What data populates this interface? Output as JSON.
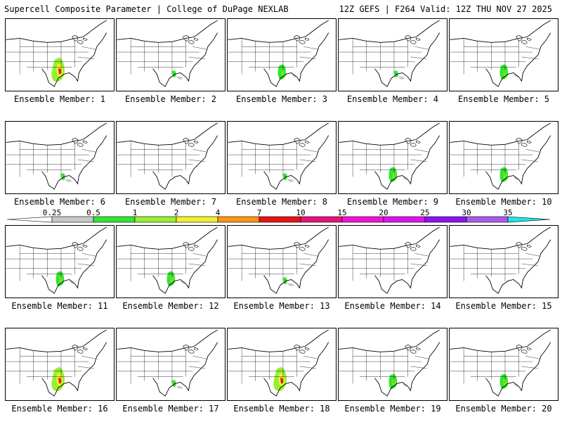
{
  "header": {
    "left": "Supercell Composite Parameter | College of DuPage NEXLAB",
    "right": "12Z GEFS | F264 Valid: 12Z THU NOV 27 2025"
  },
  "colorbar": {
    "labels": [
      "0.25",
      "0.5",
      "1",
      "2",
      "4",
      "7",
      "10",
      "15",
      "20",
      "25",
      "30",
      "35"
    ],
    "colors": [
      "#c8c8c8",
      "#32e632",
      "#96f032",
      "#f0f032",
      "#fa9614",
      "#e61414",
      "#e61478",
      "#f014d2",
      "#dc14f0",
      "#8c14f0",
      "#aa5ae6",
      "#1ee6e6"
    ]
  },
  "members": [
    {
      "label": "Ensemble Member: 1",
      "severity": "high"
    },
    {
      "label": "Ensemble Member: 2",
      "severity": "low"
    },
    {
      "label": "Ensemble Member: 3",
      "severity": "mid"
    },
    {
      "label": "Ensemble Member: 4",
      "severity": "low"
    },
    {
      "label": "Ensemble Member: 5",
      "severity": "mid"
    },
    {
      "label": "Ensemble Member: 6",
      "severity": "low"
    },
    {
      "label": "Ensemble Member: 7",
      "severity": "none"
    },
    {
      "label": "Ensemble Member: 8",
      "severity": "low"
    },
    {
      "label": "Ensemble Member: 9",
      "severity": "mid"
    },
    {
      "label": "Ensemble Member: 10",
      "severity": "mid"
    },
    {
      "label": "Ensemble Member: 11",
      "severity": "mid"
    },
    {
      "label": "Ensemble Member: 12",
      "severity": "mid"
    },
    {
      "label": "Ensemble Member: 13",
      "severity": "low"
    },
    {
      "label": "Ensemble Member: 14",
      "severity": "none"
    },
    {
      "label": "Ensemble Member: 15",
      "severity": "none"
    },
    {
      "label": "Ensemble Member: 16",
      "severity": "high"
    },
    {
      "label": "Ensemble Member: 17",
      "severity": "low"
    },
    {
      "label": "Ensemble Member: 18",
      "severity": "high"
    },
    {
      "label": "Ensemble Member: 19",
      "severity": "mid"
    },
    {
      "label": "Ensemble Member: 20",
      "severity": "mid"
    }
  ]
}
